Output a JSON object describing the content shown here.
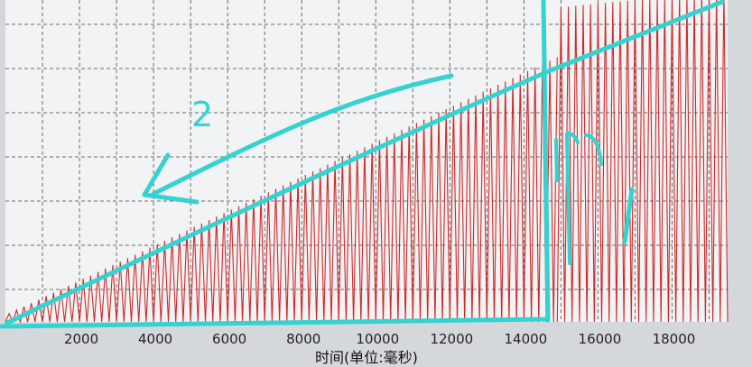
{
  "chart_data": {
    "type": "line",
    "title": "",
    "xlabel": "时间(单位:毫秒)",
    "ylabel": "",
    "xlim": [
      0,
      19500
    ],
    "ylim": [
      0,
      1
    ],
    "grid": true,
    "x_ticks": [
      2000,
      4000,
      6000,
      8000,
      10000,
      12000,
      14000,
      16000,
      18000
    ],
    "series": [
      {
        "color": "#cc2a2a",
        "description_values": {
          "segment_1": {
            "x_start": 0,
            "x_end": 14900,
            "oscillation_period": 200,
            "amplitude_envelope_start": 0.02,
            "amplitude_envelope_end": 0.8
          },
          "segment_2": {
            "x_start": 14900,
            "x_end": 19500,
            "oscillation_period": 200,
            "amplitude_envelope_start": 0.95,
            "amplitude_envelope_end": 1.0
          }
        }
      }
    ],
    "annotations": [
      {
        "label": "2",
        "color": "#34d2d0"
      },
      {
        "label": "1",
        "color": "#34d2d0"
      }
    ]
  }
}
